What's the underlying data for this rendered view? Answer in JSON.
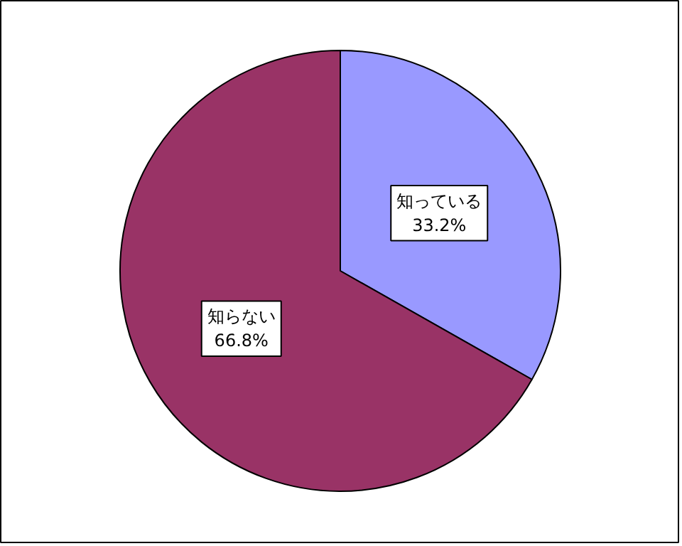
{
  "chart_data": {
    "type": "pie",
    "categories": [
      "知っている",
      "知らない"
    ],
    "values": [
      33.2,
      66.8
    ],
    "colors": [
      "#9999ff",
      "#993366"
    ],
    "value_labels": [
      "33.2%",
      "66.8%"
    ]
  }
}
